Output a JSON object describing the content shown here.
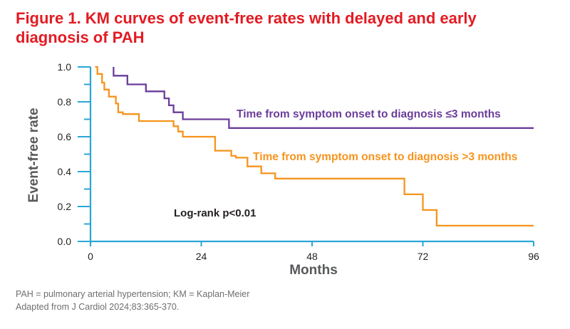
{
  "title": {
    "line1": "Figure 1. KM curves of event-free rates with delayed and early",
    "line2": "diagnosis of PAH"
  },
  "footnote": {
    "line1": "PAH = pulmonary arterial hypertension; KM = Kaplan-Meier",
    "line2": "Adapted from J Cardiol 2024;83:365-370."
  },
  "colors": {
    "title": "#e31b23",
    "axis": "#2aa6d6",
    "series_early": "#6a3d9a",
    "series_delayed": "#f7941d"
  },
  "chart_data": {
    "type": "line",
    "step": true,
    "xlabel": "Months",
    "ylabel": "Event-free rate",
    "xlim": [
      0,
      96
    ],
    "ylim": [
      0,
      1.0
    ],
    "xticks": [
      "0",
      "24",
      "48",
      "72",
      "96"
    ],
    "xtick_values": [
      0,
      24,
      48,
      72,
      96
    ],
    "yticks": [
      "0.0",
      "0.2",
      "0.4",
      "0.6",
      "0.8",
      "1.0"
    ],
    "ytick_values": [
      0.0,
      0.2,
      0.4,
      0.6,
      0.8,
      1.0
    ],
    "grid": false,
    "annotation": "Log-rank p<0.01",
    "series": [
      {
        "name": "Time from symptom onset to diagnosis ≤3 months",
        "color": "#6a3d9a",
        "x": [
          5,
          5,
          8,
          12,
          16,
          17,
          18,
          20,
          21,
          30,
          96
        ],
        "y": [
          1.0,
          0.95,
          0.9,
          0.86,
          0.82,
          0.78,
          0.74,
          0.7,
          0.7,
          0.65,
          0.65
        ]
      },
      {
        "name": "Time from symptom onset to diagnosis >3 months",
        "color": "#f7941d",
        "x": [
          1,
          1.5,
          2.5,
          3,
          4,
          5.5,
          6,
          7,
          10.5,
          18,
          19,
          20,
          23,
          27,
          30.5,
          31.5,
          34,
          37,
          40,
          68,
          72,
          75,
          96
        ],
        "y": [
          1.0,
          0.96,
          0.91,
          0.87,
          0.83,
          0.79,
          0.74,
          0.73,
          0.69,
          0.66,
          0.63,
          0.6,
          0.6,
          0.52,
          0.49,
          0.48,
          0.43,
          0.39,
          0.36,
          0.27,
          0.18,
          0.09,
          0.09
        ]
      }
    ]
  }
}
